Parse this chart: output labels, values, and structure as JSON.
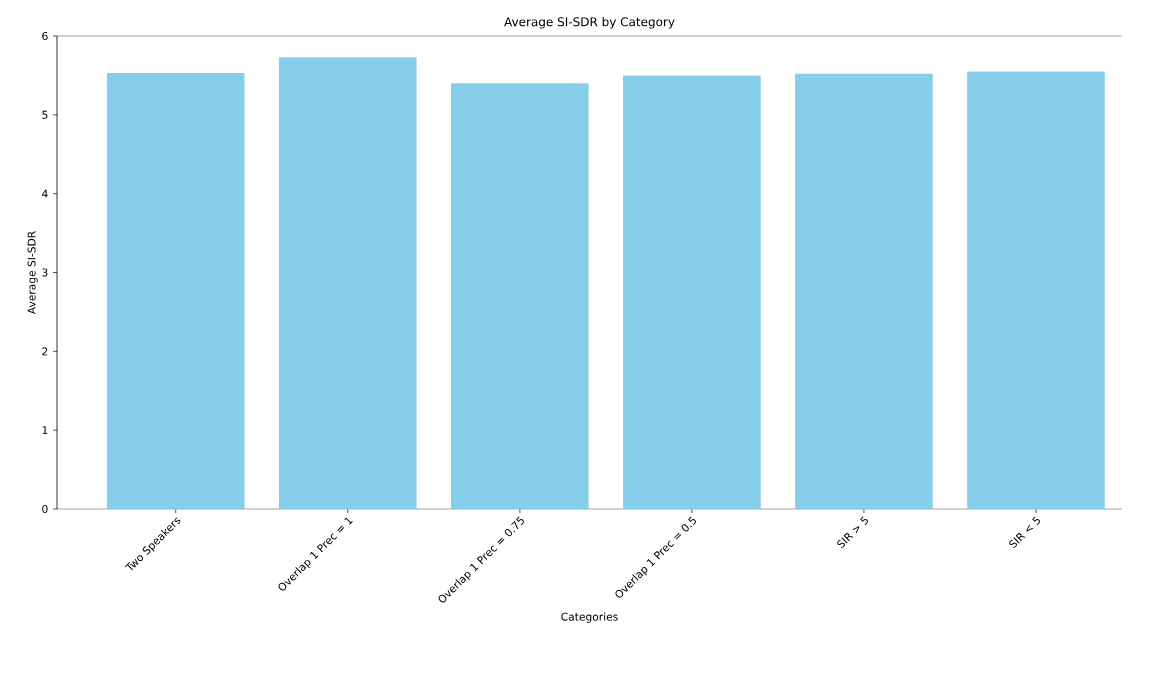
{
  "chart_data": {
    "type": "bar",
    "title": "Average SI-SDR by Category",
    "xlabel": "Categories",
    "ylabel": "Average SI-SDR",
    "categories": [
      "Two Speakers",
      "Overlap 1 Prec = 1",
      "Overlap 1 Prec = 0.75",
      "Overlap 1 Prec = 0.5",
      "SIR > 5",
      "SIR < 5"
    ],
    "values": [
      5.53,
      5.73,
      5.4,
      5.5,
      5.52,
      5.55
    ],
    "color": "#87ceeb",
    "ylim": [
      0,
      6
    ],
    "yticks": [
      0,
      1,
      2,
      3,
      4,
      5,
      6
    ]
  }
}
